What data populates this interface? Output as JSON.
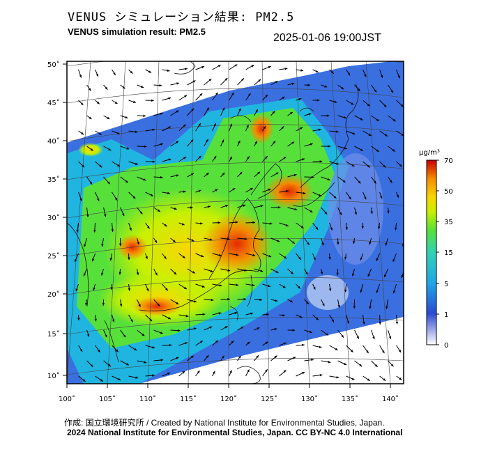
{
  "header": {
    "title_jp": "VENUS シミュレーション結果: PM2.5",
    "title_en": "VENUS simulation result: PM2.5",
    "datetime": "2025-01-06 19:00JST"
  },
  "map": {
    "lat_labels": [
      "50˚",
      "45˚",
      "40˚",
      "35˚",
      "30˚",
      "25˚",
      "20˚",
      "15˚",
      "10˚"
    ],
    "lon_labels": [
      "100˚",
      "105˚",
      "110˚",
      "115˚",
      "120˚",
      "125˚",
      "130˚",
      "135˚",
      "140˚"
    ],
    "field": "PM2.5",
    "wind_vectors": true
  },
  "colorbar": {
    "unit": "μg/m³",
    "ticks": [
      "70",
      "50",
      "35",
      "15",
      "5",
      "1",
      "0"
    ],
    "colors": [
      "#ffffff",
      "#2b49d1",
      "#1fa5e6",
      "#31d2b5",
      "#58e03a",
      "#c8f000",
      "#f8d600",
      "#f48c00",
      "#e42a00",
      "#c80000"
    ]
  },
  "footer": {
    "line1": "作成: 国立環境研究所 / Created by National Institute for Environmental Studies, Japan.",
    "line2": "2024 National Institute for Environmental Studies, Japan. CC BY-NC 4.0 International"
  }
}
